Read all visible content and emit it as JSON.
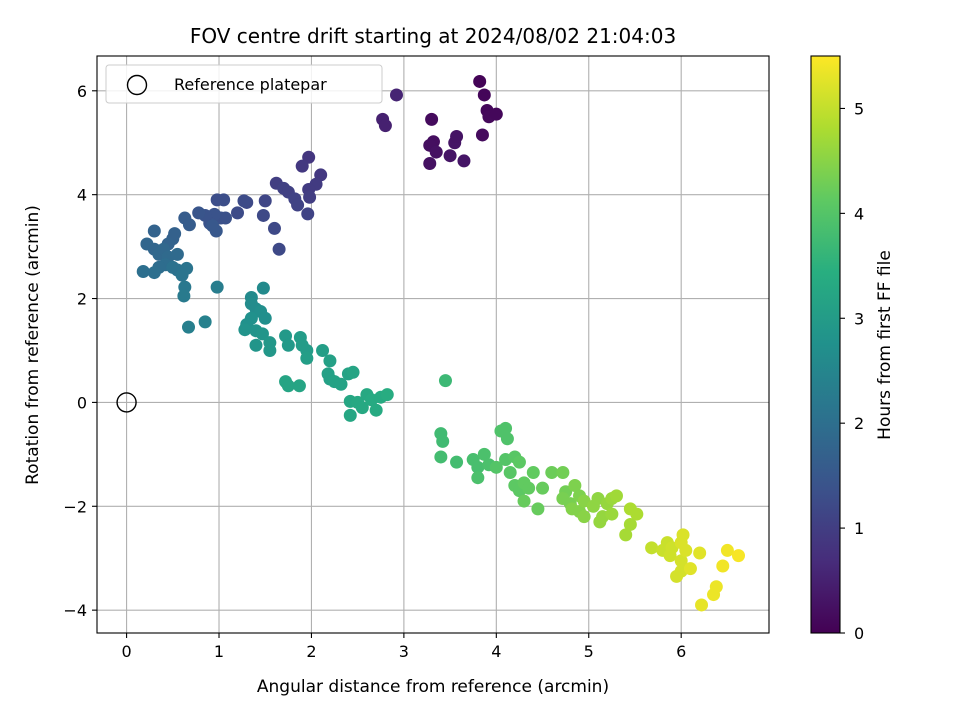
{
  "chart_data": {
    "type": "scatter",
    "title": "FOV centre drift starting at 2024/08/02 21:04:03",
    "xlabel": "Angular distance from reference (arcmin)",
    "ylabel": "Rotation from reference (arcmin)",
    "xlim": [
      -0.32,
      6.95
    ],
    "ylim": [
      -4.44,
      6.67
    ],
    "xticks": [
      0,
      1,
      2,
      3,
      4,
      5,
      6
    ],
    "yticks": [
      -4,
      -2,
      0,
      2,
      4,
      6
    ],
    "ytick_labels": [
      "−4",
      "−2",
      "0",
      "2",
      "4",
      "6"
    ],
    "grid": true,
    "legend": {
      "placement": "top-left",
      "entries": [
        "Reference platepar"
      ]
    },
    "reference_point": {
      "x": 0,
      "y": 0
    },
    "colorbar": {
      "label": "Hours from first FF file",
      "range": [
        0,
        5.5
      ],
      "ticks": [
        0,
        1,
        2,
        3,
        4,
        5
      ],
      "colormap": "viridis"
    },
    "points": [
      {
        "x": 3.82,
        "y": 6.18,
        "c": 0.05
      },
      {
        "x": 3.87,
        "y": 5.92,
        "c": 0.08
      },
      {
        "x": 3.9,
        "y": 5.62,
        "c": 0.1
      },
      {
        "x": 3.92,
        "y": 5.5,
        "c": 0.12
      },
      {
        "x": 4.0,
        "y": 5.55,
        "c": 0.1
      },
      {
        "x": 3.85,
        "y": 5.15,
        "c": 0.15
      },
      {
        "x": 3.3,
        "y": 5.45,
        "c": 0.15
      },
      {
        "x": 3.32,
        "y": 5.02,
        "c": 0.2
      },
      {
        "x": 3.28,
        "y": 4.95,
        "c": 0.22
      },
      {
        "x": 3.35,
        "y": 4.82,
        "c": 0.25
      },
      {
        "x": 3.28,
        "y": 4.6,
        "c": 0.25
      },
      {
        "x": 3.5,
        "y": 4.75,
        "c": 0.3
      },
      {
        "x": 3.55,
        "y": 5.0,
        "c": 0.3
      },
      {
        "x": 3.57,
        "y": 5.12,
        "c": 0.28
      },
      {
        "x": 3.65,
        "y": 4.65,
        "c": 0.32
      },
      {
        "x": 2.77,
        "y": 5.45,
        "c": 0.5
      },
      {
        "x": 2.8,
        "y": 5.33,
        "c": 0.5
      },
      {
        "x": 2.92,
        "y": 5.92,
        "c": 0.55
      },
      {
        "x": 1.97,
        "y": 4.72,
        "c": 0.85
      },
      {
        "x": 1.9,
        "y": 4.55,
        "c": 0.9
      },
      {
        "x": 2.1,
        "y": 4.38,
        "c": 0.9
      },
      {
        "x": 2.05,
        "y": 4.2,
        "c": 0.95
      },
      {
        "x": 1.97,
        "y": 4.1,
        "c": 0.95
      },
      {
        "x": 1.98,
        "y": 3.95,
        "c": 1.0
      },
      {
        "x": 1.62,
        "y": 4.22,
        "c": 1.0
      },
      {
        "x": 1.7,
        "y": 4.12,
        "c": 1.05
      },
      {
        "x": 1.75,
        "y": 4.05,
        "c": 1.05
      },
      {
        "x": 1.82,
        "y": 3.92,
        "c": 1.1
      },
      {
        "x": 1.85,
        "y": 3.8,
        "c": 1.1
      },
      {
        "x": 1.96,
        "y": 3.63,
        "c": 1.1
      },
      {
        "x": 1.5,
        "y": 3.88,
        "c": 1.15
      },
      {
        "x": 1.48,
        "y": 3.6,
        "c": 1.2
      },
      {
        "x": 1.6,
        "y": 3.35,
        "c": 1.2
      },
      {
        "x": 1.65,
        "y": 2.95,
        "c": 1.2
      },
      {
        "x": 1.3,
        "y": 3.85,
        "c": 1.2
      },
      {
        "x": 1.27,
        "y": 3.88,
        "c": 1.25
      },
      {
        "x": 1.2,
        "y": 3.65,
        "c": 1.25
      },
      {
        "x": 1.05,
        "y": 3.9,
        "c": 1.3
      },
      {
        "x": 0.98,
        "y": 3.9,
        "c": 1.3
      },
      {
        "x": 1.02,
        "y": 3.55,
        "c": 1.35
      },
      {
        "x": 1.07,
        "y": 3.55,
        "c": 1.35
      },
      {
        "x": 0.95,
        "y": 3.62,
        "c": 1.4
      },
      {
        "x": 0.9,
        "y": 3.45,
        "c": 1.4
      },
      {
        "x": 0.85,
        "y": 3.6,
        "c": 1.4
      },
      {
        "x": 0.78,
        "y": 3.65,
        "c": 1.45
      },
      {
        "x": 0.97,
        "y": 3.3,
        "c": 1.5
      },
      {
        "x": 0.93,
        "y": 3.4,
        "c": 1.5
      },
      {
        "x": 0.63,
        "y": 3.55,
        "c": 1.6
      },
      {
        "x": 0.68,
        "y": 3.42,
        "c": 1.6
      },
      {
        "x": 0.52,
        "y": 3.25,
        "c": 1.7
      },
      {
        "x": 0.5,
        "y": 3.15,
        "c": 1.7
      },
      {
        "x": 0.45,
        "y": 3.05,
        "c": 1.75
      },
      {
        "x": 0.3,
        "y": 3.3,
        "c": 1.75
      },
      {
        "x": 0.22,
        "y": 3.05,
        "c": 1.8
      },
      {
        "x": 0.3,
        "y": 2.95,
        "c": 1.8
      },
      {
        "x": 0.35,
        "y": 2.85,
        "c": 1.85
      },
      {
        "x": 0.4,
        "y": 2.95,
        "c": 1.85
      },
      {
        "x": 0.45,
        "y": 2.8,
        "c": 1.9
      },
      {
        "x": 0.55,
        "y": 2.85,
        "c": 1.9
      },
      {
        "x": 0.42,
        "y": 2.65,
        "c": 1.95
      },
      {
        "x": 0.35,
        "y": 2.6,
        "c": 1.95
      },
      {
        "x": 0.3,
        "y": 2.5,
        "c": 2.0
      },
      {
        "x": 0.18,
        "y": 2.52,
        "c": 2.0
      },
      {
        "x": 0.5,
        "y": 2.6,
        "c": 2.05
      },
      {
        "x": 0.55,
        "y": 2.55,
        "c": 2.05
      },
      {
        "x": 0.6,
        "y": 2.45,
        "c": 2.1
      },
      {
        "x": 0.65,
        "y": 2.58,
        "c": 2.1
      },
      {
        "x": 0.63,
        "y": 2.22,
        "c": 2.2
      },
      {
        "x": 0.62,
        "y": 2.05,
        "c": 2.25
      },
      {
        "x": 0.98,
        "y": 2.22,
        "c": 2.3
      },
      {
        "x": 0.67,
        "y": 1.45,
        "c": 2.35
      },
      {
        "x": 0.85,
        "y": 1.55,
        "c": 2.4
      },
      {
        "x": 1.48,
        "y": 2.2,
        "c": 2.6
      },
      {
        "x": 1.35,
        "y": 2.02,
        "c": 2.6
      },
      {
        "x": 1.35,
        "y": 1.9,
        "c": 2.65
      },
      {
        "x": 1.4,
        "y": 1.8,
        "c": 2.65
      },
      {
        "x": 1.45,
        "y": 1.75,
        "c": 2.7
      },
      {
        "x": 1.5,
        "y": 1.62,
        "c": 2.7
      },
      {
        "x": 1.35,
        "y": 1.62,
        "c": 2.75
      },
      {
        "x": 1.3,
        "y": 1.5,
        "c": 2.75
      },
      {
        "x": 1.28,
        "y": 1.4,
        "c": 2.8
      },
      {
        "x": 1.4,
        "y": 1.38,
        "c": 2.8
      },
      {
        "x": 1.47,
        "y": 1.32,
        "c": 2.85
      },
      {
        "x": 1.4,
        "y": 1.1,
        "c": 2.85
      },
      {
        "x": 1.55,
        "y": 1.15,
        "c": 2.9
      },
      {
        "x": 1.55,
        "y": 1.0,
        "c": 2.9
      },
      {
        "x": 1.72,
        "y": 1.28,
        "c": 2.95
      },
      {
        "x": 1.75,
        "y": 1.1,
        "c": 2.95
      },
      {
        "x": 1.88,
        "y": 1.25,
        "c": 3.0
      },
      {
        "x": 1.9,
        "y": 1.1,
        "c": 3.0
      },
      {
        "x": 1.95,
        "y": 1.0,
        "c": 3.0
      },
      {
        "x": 1.95,
        "y": 0.85,
        "c": 3.05
      },
      {
        "x": 2.12,
        "y": 1.0,
        "c": 3.05
      },
      {
        "x": 2.2,
        "y": 0.8,
        "c": 3.1
      },
      {
        "x": 2.18,
        "y": 0.55,
        "c": 3.1
      },
      {
        "x": 2.2,
        "y": 0.45,
        "c": 3.1
      },
      {
        "x": 2.25,
        "y": 0.4,
        "c": 3.15
      },
      {
        "x": 2.32,
        "y": 0.35,
        "c": 3.15
      },
      {
        "x": 2.4,
        "y": 0.55,
        "c": 3.15
      },
      {
        "x": 2.45,
        "y": 0.58,
        "c": 3.2
      },
      {
        "x": 1.72,
        "y": 0.4,
        "c": 3.2
      },
      {
        "x": 1.75,
        "y": 0.32,
        "c": 3.2
      },
      {
        "x": 1.87,
        "y": 0.32,
        "c": 3.2
      },
      {
        "x": 2.42,
        "y": 0.02,
        "c": 3.25
      },
      {
        "x": 2.42,
        "y": -0.25,
        "c": 3.25
      },
      {
        "x": 2.5,
        "y": 0.0,
        "c": 3.3
      },
      {
        "x": 2.55,
        "y": -0.1,
        "c": 3.3
      },
      {
        "x": 2.6,
        "y": 0.15,
        "c": 3.3
      },
      {
        "x": 2.65,
        "y": 0.05,
        "c": 3.35
      },
      {
        "x": 2.7,
        "y": -0.15,
        "c": 3.35
      },
      {
        "x": 2.75,
        "y": 0.1,
        "c": 3.35
      },
      {
        "x": 2.82,
        "y": 0.15,
        "c": 3.4
      },
      {
        "x": 3.45,
        "y": 0.42,
        "c": 3.7
      },
      {
        "x": 3.4,
        "y": -0.6,
        "c": 3.75
      },
      {
        "x": 3.42,
        "y": -0.75,
        "c": 3.75
      },
      {
        "x": 3.4,
        "y": -1.05,
        "c": 3.8
      },
      {
        "x": 3.57,
        "y": -1.15,
        "c": 3.8
      },
      {
        "x": 3.75,
        "y": -1.1,
        "c": 3.85
      },
      {
        "x": 3.8,
        "y": -1.25,
        "c": 3.85
      },
      {
        "x": 3.8,
        "y": -1.45,
        "c": 3.9
      },
      {
        "x": 3.87,
        "y": -1.0,
        "c": 3.9
      },
      {
        "x": 3.92,
        "y": -1.2,
        "c": 3.9
      },
      {
        "x": 4.05,
        "y": -0.55,
        "c": 3.95
      },
      {
        "x": 4.1,
        "y": -0.5,
        "c": 3.95
      },
      {
        "x": 4.12,
        "y": -0.7,
        "c": 3.95
      },
      {
        "x": 4.0,
        "y": -1.25,
        "c": 4.0
      },
      {
        "x": 4.1,
        "y": -1.1,
        "c": 4.0
      },
      {
        "x": 4.15,
        "y": -1.35,
        "c": 4.05
      },
      {
        "x": 4.2,
        "y": -1.05,
        "c": 4.05
      },
      {
        "x": 4.25,
        "y": -1.15,
        "c": 4.1
      },
      {
        "x": 4.2,
        "y": -1.6,
        "c": 4.1
      },
      {
        "x": 4.25,
        "y": -1.7,
        "c": 4.1
      },
      {
        "x": 4.3,
        "y": -1.55,
        "c": 4.15
      },
      {
        "x": 4.35,
        "y": -1.65,
        "c": 4.15
      },
      {
        "x": 4.4,
        "y": -1.35,
        "c": 4.15
      },
      {
        "x": 4.3,
        "y": -1.9,
        "c": 4.2
      },
      {
        "x": 4.45,
        "y": -2.05,
        "c": 4.2
      },
      {
        "x": 4.5,
        "y": -1.65,
        "c": 4.2
      },
      {
        "x": 4.6,
        "y": -1.35,
        "c": 4.25
      },
      {
        "x": 4.72,
        "y": -1.35,
        "c": 4.3
      },
      {
        "x": 4.75,
        "y": -1.72,
        "c": 4.3
      },
      {
        "x": 4.72,
        "y": -1.85,
        "c": 4.35
      },
      {
        "x": 4.8,
        "y": -1.95,
        "c": 4.35
      },
      {
        "x": 4.85,
        "y": -1.6,
        "c": 4.4
      },
      {
        "x": 4.9,
        "y": -1.8,
        "c": 4.4
      },
      {
        "x": 4.82,
        "y": -2.05,
        "c": 4.45
      },
      {
        "x": 4.9,
        "y": -2.1,
        "c": 4.45
      },
      {
        "x": 4.95,
        "y": -1.9,
        "c": 4.5
      },
      {
        "x": 4.95,
        "y": -2.2,
        "c": 4.5
      },
      {
        "x": 5.05,
        "y": -2.0,
        "c": 4.55
      },
      {
        "x": 5.1,
        "y": -1.85,
        "c": 4.55
      },
      {
        "x": 5.12,
        "y": -2.3,
        "c": 4.6
      },
      {
        "x": 5.15,
        "y": -2.2,
        "c": 4.6
      },
      {
        "x": 5.2,
        "y": -1.95,
        "c": 4.6
      },
      {
        "x": 5.25,
        "y": -1.85,
        "c": 4.65
      },
      {
        "x": 5.25,
        "y": -2.15,
        "c": 4.65
      },
      {
        "x": 5.3,
        "y": -1.8,
        "c": 4.7
      },
      {
        "x": 5.4,
        "y": -2.55,
        "c": 4.75
      },
      {
        "x": 5.45,
        "y": -2.35,
        "c": 4.75
      },
      {
        "x": 5.45,
        "y": -2.05,
        "c": 4.8
      },
      {
        "x": 5.52,
        "y": -2.15,
        "c": 4.8
      },
      {
        "x": 5.68,
        "y": -2.8,
        "c": 5.0
      },
      {
        "x": 5.8,
        "y": -2.85,
        "c": 5.05
      },
      {
        "x": 5.85,
        "y": -2.7,
        "c": 5.05
      },
      {
        "x": 5.88,
        "y": -2.95,
        "c": 5.1
      },
      {
        "x": 5.9,
        "y": -2.8,
        "c": 5.1
      },
      {
        "x": 5.95,
        "y": -3.35,
        "c": 5.15
      },
      {
        "x": 6.0,
        "y": -3.05,
        "c": 5.15
      },
      {
        "x": 6.0,
        "y": -3.25,
        "c": 5.15
      },
      {
        "x": 6.0,
        "y": -2.7,
        "c": 5.2
      },
      {
        "x": 6.02,
        "y": -2.55,
        "c": 5.2
      },
      {
        "x": 6.05,
        "y": -2.85,
        "c": 5.2
      },
      {
        "x": 6.1,
        "y": -3.2,
        "c": 5.25
      },
      {
        "x": 6.2,
        "y": -2.9,
        "c": 5.25
      },
      {
        "x": 6.22,
        "y": -3.9,
        "c": 5.3
      },
      {
        "x": 6.35,
        "y": -3.7,
        "c": 5.35
      },
      {
        "x": 6.38,
        "y": -3.55,
        "c": 5.35
      },
      {
        "x": 6.45,
        "y": -3.15,
        "c": 5.4
      },
      {
        "x": 6.5,
        "y": -2.85,
        "c": 5.4
      },
      {
        "x": 6.62,
        "y": -2.95,
        "c": 5.45
      }
    ]
  }
}
